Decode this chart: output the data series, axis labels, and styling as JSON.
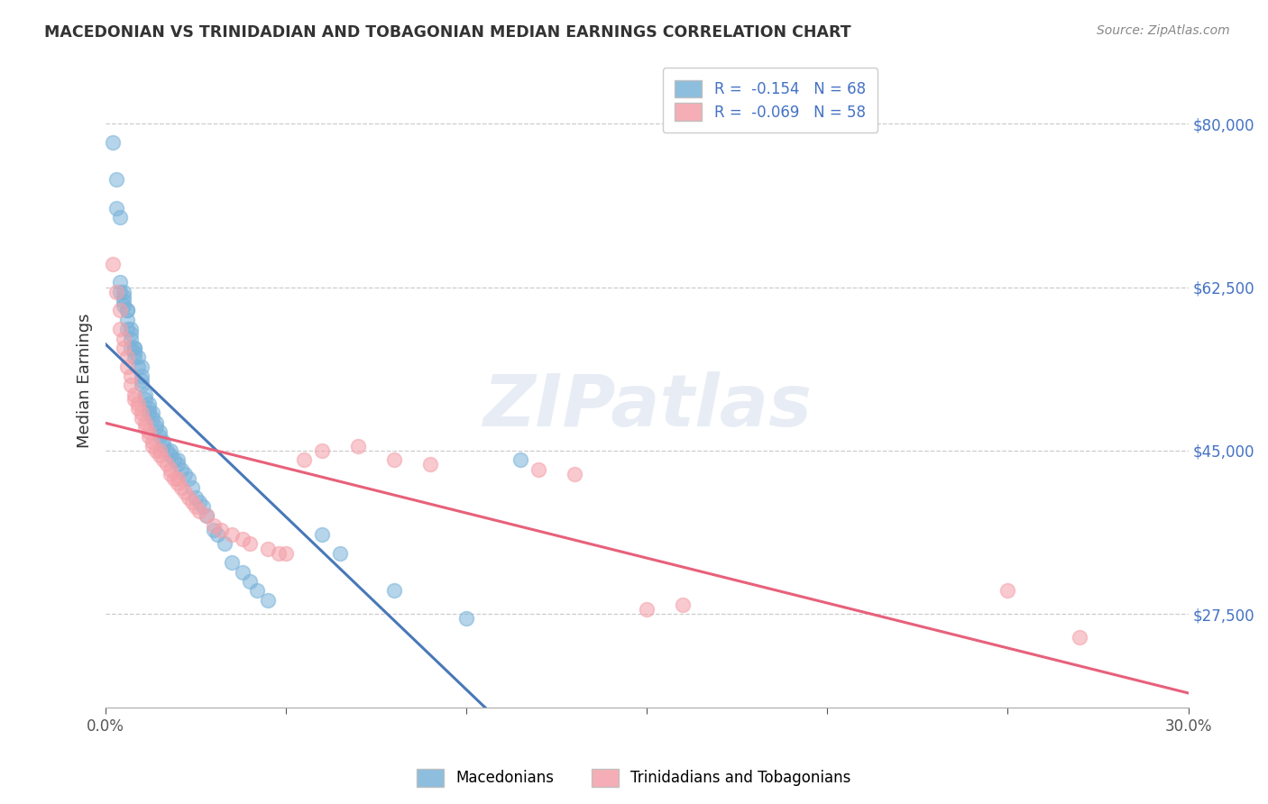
{
  "title": "MACEDONIAN VS TRINIDADIAN AND TOBAGONIAN MEDIAN EARNINGS CORRELATION CHART",
  "source": "Source: ZipAtlas.com",
  "ylabel": "Median Earnings",
  "xlim": [
    0.0,
    0.3
  ],
  "ylim": [
    17500,
    87500
  ],
  "yticks": [
    27500,
    45000,
    62500,
    80000
  ],
  "ytick_labels": [
    "$27,500",
    "$45,000",
    "$62,500",
    "$80,000"
  ],
  "xticks": [
    0.0,
    0.05,
    0.1,
    0.15,
    0.2,
    0.25,
    0.3
  ],
  "xtick_labels": [
    "0.0%",
    "",
    "",
    "",
    "",
    "",
    "30.0%"
  ],
  "blue_R": "-0.154",
  "blue_N": "68",
  "pink_R": "-0.069",
  "pink_N": "58",
  "blue_color": "#7ab3d9",
  "pink_color": "#f4a0a8",
  "blue_line_color": "#4878b8",
  "pink_line_color": "#e8607a",
  "blue_dash_color": "#a8c8e8",
  "blue_label": "Macedonians",
  "pink_label": "Trinidadians and Tobagonians",
  "watermark": "ZIPatlas",
  "blue_scatter_x": [
    0.002,
    0.003,
    0.003,
    0.004,
    0.004,
    0.004,
    0.005,
    0.005,
    0.005,
    0.005,
    0.006,
    0.006,
    0.006,
    0.006,
    0.007,
    0.007,
    0.007,
    0.007,
    0.008,
    0.008,
    0.008,
    0.008,
    0.009,
    0.009,
    0.01,
    0.01,
    0.01,
    0.01,
    0.011,
    0.011,
    0.012,
    0.012,
    0.012,
    0.013,
    0.013,
    0.014,
    0.014,
    0.015,
    0.015,
    0.016,
    0.016,
    0.017,
    0.018,
    0.018,
    0.019,
    0.02,
    0.02,
    0.021,
    0.022,
    0.023,
    0.024,
    0.025,
    0.026,
    0.027,
    0.028,
    0.03,
    0.031,
    0.033,
    0.035,
    0.038,
    0.04,
    0.042,
    0.045,
    0.06,
    0.065,
    0.08,
    0.1,
    0.115
  ],
  "blue_scatter_y": [
    78000,
    74000,
    71000,
    70000,
    63000,
    62000,
    62000,
    61500,
    61000,
    60500,
    60000,
    60000,
    59000,
    58000,
    58000,
    57500,
    57000,
    56000,
    56000,
    56000,
    55500,
    55000,
    55000,
    54000,
    54000,
    53000,
    52500,
    52000,
    51000,
    50500,
    50000,
    49500,
    49000,
    49000,
    48500,
    48000,
    47500,
    47000,
    46500,
    46000,
    45500,
    45000,
    45000,
    44500,
    44000,
    44000,
    43500,
    43000,
    42500,
    42000,
    41000,
    40000,
    39500,
    39000,
    38000,
    36500,
    36000,
    35000,
    33000,
    32000,
    31000,
    30000,
    29000,
    36000,
    34000,
    30000,
    27000,
    44000
  ],
  "pink_scatter_x": [
    0.002,
    0.003,
    0.004,
    0.004,
    0.005,
    0.005,
    0.006,
    0.006,
    0.007,
    0.007,
    0.008,
    0.008,
    0.009,
    0.009,
    0.01,
    0.01,
    0.011,
    0.011,
    0.012,
    0.012,
    0.013,
    0.013,
    0.014,
    0.015,
    0.015,
    0.016,
    0.017,
    0.018,
    0.018,
    0.019,
    0.02,
    0.02,
    0.021,
    0.022,
    0.023,
    0.024,
    0.025,
    0.026,
    0.028,
    0.03,
    0.032,
    0.035,
    0.038,
    0.04,
    0.045,
    0.048,
    0.05,
    0.055,
    0.06,
    0.07,
    0.08,
    0.09,
    0.12,
    0.13,
    0.15,
    0.16,
    0.25,
    0.27
  ],
  "pink_scatter_y": [
    65000,
    62000,
    60000,
    58000,
    57000,
    56000,
    55000,
    54000,
    53000,
    52000,
    51000,
    50500,
    50000,
    49500,
    49000,
    48500,
    48000,
    47500,
    47000,
    46500,
    46000,
    45500,
    45000,
    45000,
    44500,
    44000,
    43500,
    43000,
    42500,
    42000,
    42000,
    41500,
    41000,
    40500,
    40000,
    39500,
    39000,
    38500,
    38000,
    37000,
    36500,
    36000,
    35500,
    35000,
    34500,
    34000,
    34000,
    44000,
    45000,
    45500,
    44000,
    43500,
    43000,
    42500,
    28000,
    28500,
    30000,
    25000
  ]
}
